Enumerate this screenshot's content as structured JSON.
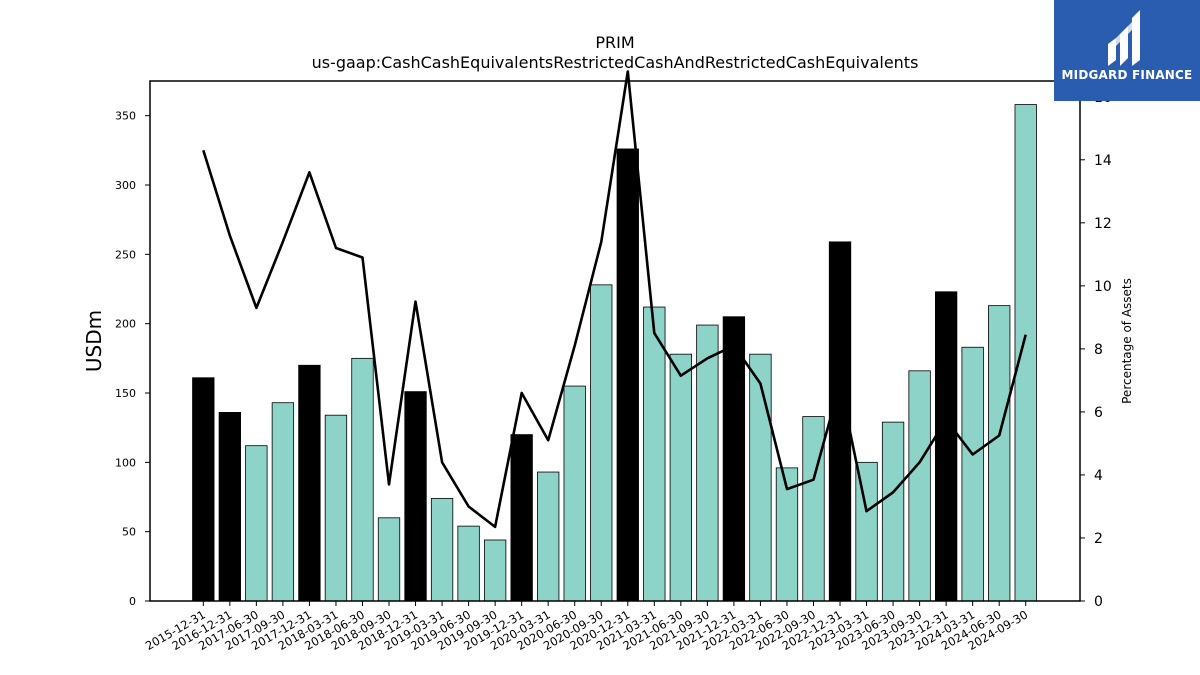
{
  "chart_data": {
    "type": "bar",
    "title": "PRIM",
    "subtitle": "us-gaap:CashCashEquivalentsRestrictedCashAndRestrictedCashEquivalents",
    "ylabel": "USDm",
    "ylabel_right": "Percentage of Assets",
    "ylim": [
      0,
      375
    ],
    "ylim_right": [
      0,
      16.5
    ],
    "yticks": [
      0,
      50,
      100,
      150,
      200,
      250,
      300,
      350
    ],
    "yticks_right": [
      0,
      2,
      4,
      6,
      8,
      10,
      12,
      14,
      16
    ],
    "grid": false,
    "categories": [
      "2015-12-31",
      "2016-12-31",
      "2017-06-30",
      "2017-09-30",
      "2017-12-31",
      "2018-03-31",
      "2018-06-30",
      "2018-09-30",
      "2018-12-31",
      "2019-03-31",
      "2019-06-30",
      "2019-09-30",
      "2019-12-31",
      "2020-03-31",
      "2020-06-30",
      "2020-09-30",
      "2020-12-31",
      "2021-03-31",
      "2021-06-30",
      "2021-09-30",
      "2021-12-31",
      "2022-03-31",
      "2022-06-30",
      "2022-09-30",
      "2022-12-31",
      "2023-03-31",
      "2023-06-30",
      "2023-09-30",
      "2023-12-31",
      "2024-03-31",
      "2024-06-30",
      "2024-09-30"
    ],
    "series": [
      {
        "type": "bar",
        "values": [
          161,
          136,
          112,
          143,
          170,
          134,
          175,
          60,
          151,
          74,
          54,
          44,
          120,
          93,
          155,
          228,
          326,
          212,
          178,
          199,
          205,
          178,
          96,
          133,
          259,
          100,
          129,
          166,
          223,
          183,
          213,
          358
        ]
      },
      {
        "type": "line",
        "axis": "right",
        "values": [
          14.3,
          11.6,
          9.3,
          11.4,
          13.6,
          11.2,
          10.9,
          3.7,
          9.5,
          4.4,
          3.0,
          2.35,
          6.6,
          5.1,
          8.1,
          11.4,
          16.8,
          8.5,
          7.15,
          7.7,
          8.1,
          6.9,
          3.55,
          3.85,
          6.9,
          2.85,
          3.45,
          4.4,
          5.75,
          4.65,
          5.25,
          8.45
        ]
      }
    ],
    "colors": {
      "annual_bar": "#000000",
      "quarter_bar": "#8dd3c7",
      "bar_edge": "#000000",
      "line": "#000000"
    }
  },
  "logo": {
    "text": "MIDGARD FINANCE",
    "background": "#2a5db0"
  }
}
